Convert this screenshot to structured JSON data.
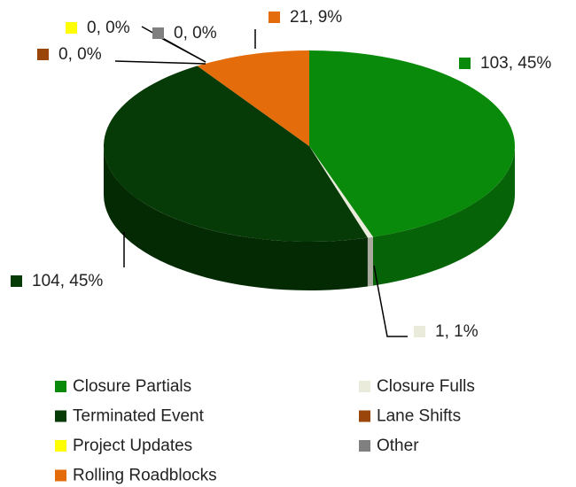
{
  "chart_data": {
    "type": "pie",
    "categories": [
      "Closure Partials",
      "Closure Fulls",
      "Terminated Event",
      "Lane Shifts",
      "Project Updates",
      "Other",
      "Rolling Roadblocks"
    ],
    "values": [
      103,
      1,
      104,
      0,
      0,
      0,
      21
    ],
    "value_labels": [
      "103, 45%",
      "1, 1%",
      "104, 45%",
      "0, 0%",
      "0, 0%",
      "0, 0%",
      "21, 9%"
    ],
    "colors": [
      "#0a8a0a",
      "#ebebdc",
      "#063a06",
      "#9a450a",
      "#ffff00",
      "#808080",
      "#e46c0a"
    ],
    "legend": "bottom"
  }
}
